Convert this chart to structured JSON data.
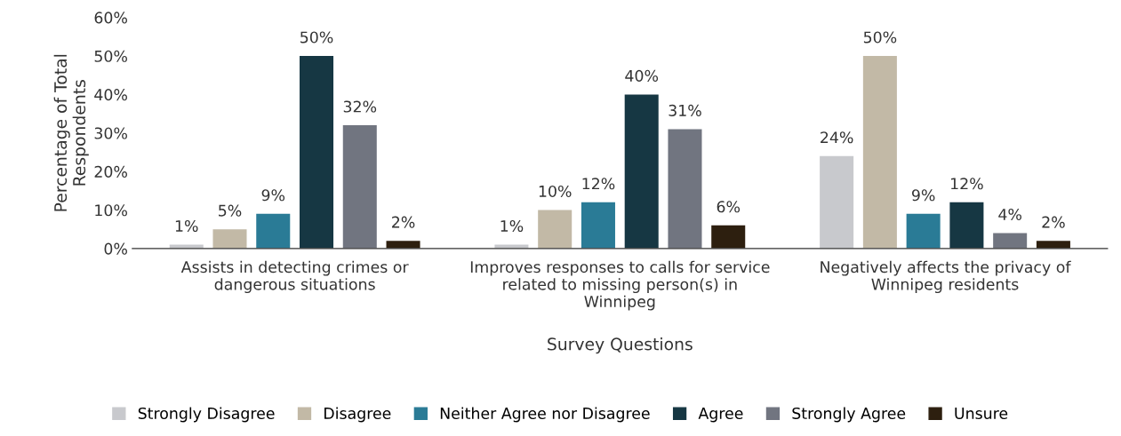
{
  "chart_data": {
    "type": "bar",
    "xlabel": "Survey Questions",
    "ylabel": "Percentage of Total\nRespondents",
    "categories": [
      "Assists in detecting crimes or\ndangerous situations",
      "Improves responses to calls for service\nrelated to missing person(s) in\nWinnipeg",
      "Negatively affects the privacy of\nWinnipeg residents"
    ],
    "series": [
      {
        "name": "Strongly Disagree",
        "color": "#c8c9cd",
        "values": [
          1,
          1,
          24
        ],
        "value_labels": [
          "1%",
          "1%",
          "24%"
        ]
      },
      {
        "name": "Disagree",
        "color": "#c2b9a6",
        "values": [
          5,
          10,
          50
        ],
        "value_labels": [
          "5%",
          "10%",
          "50%"
        ]
      },
      {
        "name": "Neither Agree nor Disagree",
        "color": "#2a7b96",
        "values": [
          9,
          12,
          9
        ],
        "value_labels": [
          "9%",
          "12%",
          "9%"
        ]
      },
      {
        "name": "Agree",
        "color": "#163743",
        "values": [
          50,
          40,
          12
        ],
        "value_labels": [
          "50%",
          "40%",
          "12%"
        ]
      },
      {
        "name": "Strongly Agree",
        "color": "#717580",
        "values": [
          32,
          31,
          4
        ],
        "value_labels": [
          "32%",
          "31%",
          "4%"
        ]
      },
      {
        "name": "Unsure",
        "color": "#2d1f0f",
        "values": [
          2,
          6,
          2
        ],
        "value_labels": [
          "2%",
          "6%",
          "2%"
        ]
      }
    ],
    "ylim": [
      0,
      60
    ],
    "yticks": [
      {
        "value": 0,
        "label": "0%"
      },
      {
        "value": 10,
        "label": "10%"
      },
      {
        "value": 20,
        "label": "20%"
      },
      {
        "value": 30,
        "label": "30%"
      },
      {
        "value": 40,
        "label": "40%"
      },
      {
        "value": 50,
        "label": "50%"
      },
      {
        "value": 60,
        "label": "60%"
      }
    ],
    "grid": false,
    "legend": "bottom"
  }
}
